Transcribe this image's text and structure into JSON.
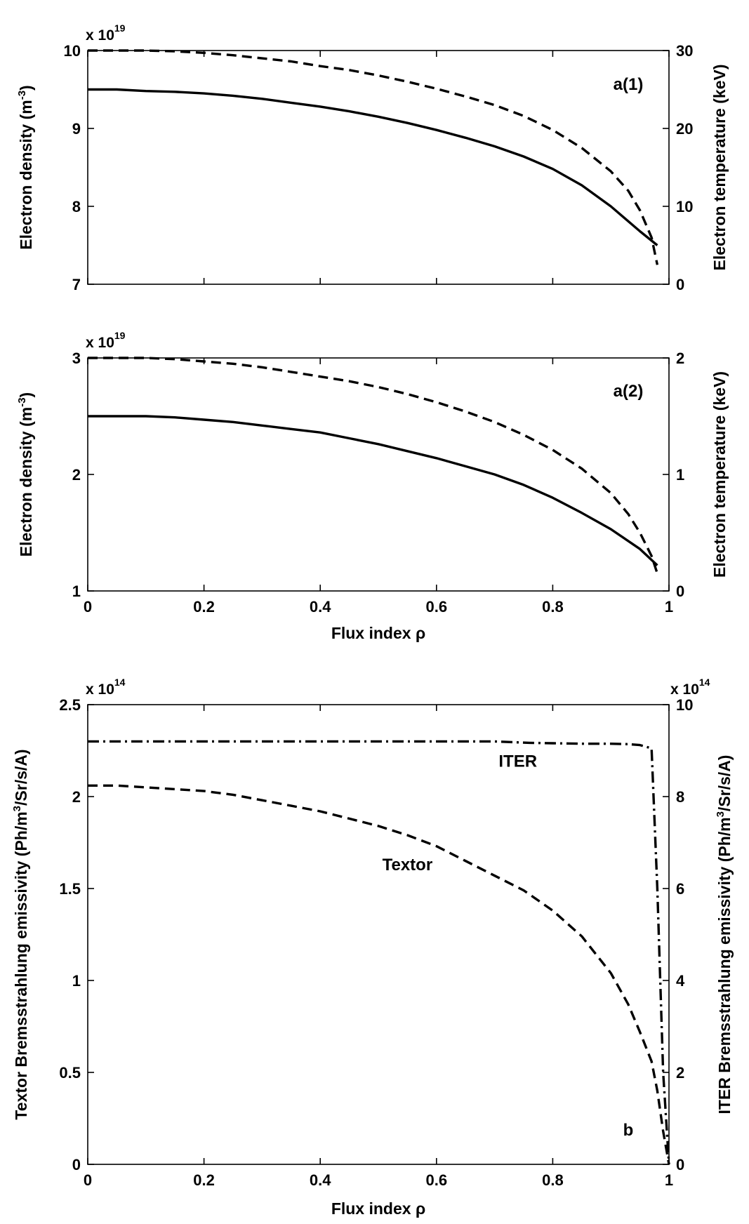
{
  "chart_data": [
    {
      "type": "line",
      "panel_label": "a(1)",
      "multiplier_left": {
        "base": "x 10",
        "exponent": "19"
      },
      "ylabel_left": "Electron density (m",
      "ylabel_left_exp": "-3",
      "ylabel_left_tail": ")",
      "ylabel_right": "Electron temperature (keV)",
      "xlabel": "",
      "xlim": [
        0,
        1
      ],
      "ylim_left": [
        7,
        10
      ],
      "ylim_right": [
        0,
        30
      ],
      "xticks": [
        "0",
        "0.2",
        "0.4",
        "0.6",
        "0.8",
        "1"
      ],
      "yticks_left": [
        "7",
        "8",
        "9",
        "10"
      ],
      "yticks_right": [
        "0",
        "10",
        "20",
        "30"
      ],
      "show_xtick_labels": false,
      "series": [
        {
          "axis": "left",
          "style": "solid",
          "x": [
            0,
            0.05,
            0.1,
            0.15,
            0.2,
            0.25,
            0.3,
            0.35,
            0.4,
            0.45,
            0.5,
            0.55,
            0.6,
            0.65,
            0.7,
            0.75,
            0.8,
            0.85,
            0.9,
            0.95,
            0.98
          ],
          "y": [
            9.5,
            9.5,
            9.48,
            9.47,
            9.45,
            9.42,
            9.38,
            9.33,
            9.28,
            9.22,
            9.15,
            9.07,
            8.98,
            8.88,
            8.77,
            8.64,
            8.48,
            8.27,
            8.0,
            7.68,
            7.5
          ]
        },
        {
          "axis": "right",
          "style": "dashed",
          "x": [
            0,
            0.05,
            0.1,
            0.15,
            0.2,
            0.25,
            0.3,
            0.35,
            0.4,
            0.45,
            0.5,
            0.55,
            0.6,
            0.65,
            0.7,
            0.75,
            0.8,
            0.85,
            0.9,
            0.93,
            0.95,
            0.97,
            0.98
          ],
          "y": [
            30,
            30,
            30,
            29.9,
            29.7,
            29.4,
            29.0,
            28.6,
            28.0,
            27.5,
            26.8,
            26.0,
            25.1,
            24.1,
            23.0,
            21.6,
            19.8,
            17.5,
            14.5,
            12.0,
            9.5,
            6.0,
            2.5
          ]
        }
      ]
    },
    {
      "type": "line",
      "panel_label": "a(2)",
      "multiplier_left": {
        "base": "x 10",
        "exponent": "19"
      },
      "ylabel_left": "Electron density (m",
      "ylabel_left_exp": "-3",
      "ylabel_left_tail": ")",
      "ylabel_right": "Electron temperature (keV)",
      "xlabel": "Flux index ρ",
      "xlim": [
        0,
        1
      ],
      "ylim_left": [
        1,
        3
      ],
      "ylim_right": [
        0,
        2
      ],
      "xticks": [
        "0",
        "0.2",
        "0.4",
        "0.6",
        "0.8",
        "1"
      ],
      "yticks_left": [
        "1",
        "2",
        "3"
      ],
      "yticks_right": [
        "0",
        "1",
        "2"
      ],
      "show_xtick_labels": true,
      "series": [
        {
          "axis": "left",
          "style": "solid",
          "x": [
            0,
            0.05,
            0.1,
            0.15,
            0.2,
            0.25,
            0.3,
            0.35,
            0.4,
            0.45,
            0.5,
            0.55,
            0.6,
            0.65,
            0.7,
            0.75,
            0.8,
            0.85,
            0.9,
            0.95,
            0.98
          ],
          "y": [
            2.5,
            2.5,
            2.5,
            2.49,
            2.47,
            2.45,
            2.42,
            2.39,
            2.36,
            2.31,
            2.26,
            2.2,
            2.14,
            2.07,
            2.0,
            1.91,
            1.8,
            1.67,
            1.53,
            1.36,
            1.22
          ]
        },
        {
          "axis": "right",
          "style": "dashed",
          "x": [
            0,
            0.05,
            0.1,
            0.15,
            0.2,
            0.25,
            0.3,
            0.35,
            0.4,
            0.45,
            0.5,
            0.55,
            0.6,
            0.65,
            0.7,
            0.75,
            0.8,
            0.85,
            0.9,
            0.93,
            0.95,
            0.97,
            0.98
          ],
          "y": [
            2.0,
            2.0,
            2.0,
            1.99,
            1.97,
            1.95,
            1.92,
            1.88,
            1.84,
            1.8,
            1.75,
            1.69,
            1.62,
            1.54,
            1.45,
            1.34,
            1.21,
            1.05,
            0.84,
            0.66,
            0.5,
            0.3,
            0.15
          ]
        }
      ]
    },
    {
      "type": "line",
      "panel_label": "b",
      "multiplier_left": {
        "base": "x 10",
        "exponent": "14"
      },
      "multiplier_right": {
        "base": "x 10",
        "exponent": "14"
      },
      "ylabel_left": "Textor Bremsstrahlung emissivity (Ph/m",
      "ylabel_left_exp": "3",
      "ylabel_left_tail": "/Sr/s/A)",
      "ylabel_right": "ITER Bremsstrahlung emissivity (Ph/m",
      "ylabel_right_exp": "3",
      "ylabel_right_tail": "/Sr/s/A)",
      "xlabel": "Flux index ρ",
      "xlim": [
        0,
        1
      ],
      "ylim_left": [
        0,
        2.5
      ],
      "ylim_right": [
        0,
        10
      ],
      "xticks": [
        "0",
        "0.2",
        "0.4",
        "0.6",
        "0.8",
        "1"
      ],
      "yticks_left": [
        "0",
        "0.5",
        "1",
        "1.5",
        "2",
        "2.5"
      ],
      "yticks_right": [
        "0",
        "2",
        "4",
        "6",
        "8",
        "10"
      ],
      "show_xtick_labels": true,
      "annotations": [
        {
          "text": "ITER",
          "x": 0.74,
          "y_right": 8.65
        },
        {
          "text": "Textor",
          "x": 0.55,
          "y_left": 1.6
        }
      ],
      "series": [
        {
          "name": "ITER",
          "axis": "right",
          "style": "dashdot",
          "x": [
            0,
            0.1,
            0.2,
            0.3,
            0.4,
            0.5,
            0.6,
            0.7,
            0.76,
            0.8,
            0.85,
            0.9,
            0.93,
            0.95,
            0.97,
            0.98,
            0.99,
            1.0
          ],
          "y": [
            9.2,
            9.2,
            9.2,
            9.2,
            9.2,
            9.2,
            9.2,
            9.2,
            9.17,
            9.16,
            9.15,
            9.15,
            9.14,
            9.12,
            9.05,
            6.0,
            2.0,
            0
          ]
        },
        {
          "name": "Textor",
          "axis": "left",
          "style": "dashed",
          "x": [
            0,
            0.05,
            0.1,
            0.15,
            0.2,
            0.25,
            0.3,
            0.35,
            0.4,
            0.45,
            0.5,
            0.55,
            0.6,
            0.65,
            0.7,
            0.75,
            0.8,
            0.85,
            0.9,
            0.93,
            0.95,
            0.97,
            0.98,
            0.99,
            1.0
          ],
          "y": [
            2.06,
            2.06,
            2.05,
            2.04,
            2.03,
            2.01,
            1.98,
            1.95,
            1.92,
            1.88,
            1.84,
            1.79,
            1.73,
            1.65,
            1.57,
            1.49,
            1.38,
            1.24,
            1.04,
            0.87,
            0.72,
            0.56,
            0.4,
            0.18,
            0.0
          ]
        }
      ]
    }
  ]
}
